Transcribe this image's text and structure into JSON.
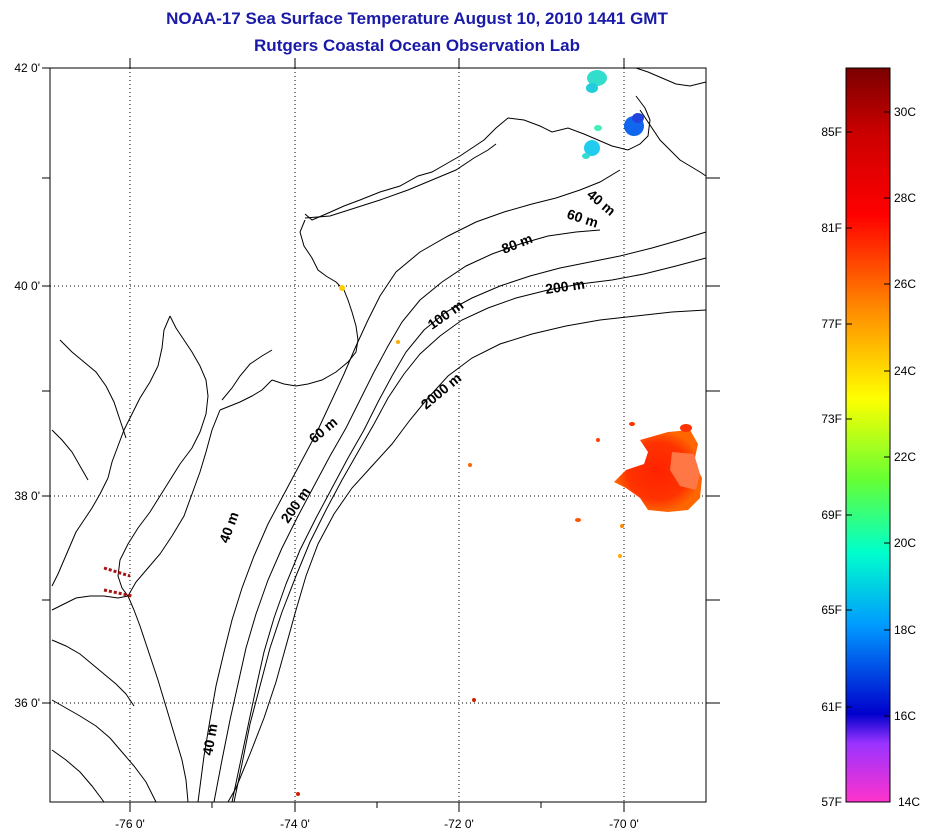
{
  "header": {
    "title": "NOAA-17 Sea Surface Temperature August 10, 2010 1441 GMT",
    "subtitle": "Rutgers Coastal Ocean Observation Lab"
  },
  "map": {
    "lon_range": [
      -77,
      -69
    ],
    "lat_range": [
      35,
      42
    ],
    "lon_ticks": [
      {
        "lon": -76,
        "label": "-76 0'"
      },
      {
        "lon": -74,
        "label": "-74 0'"
      },
      {
        "lon": -72,
        "label": "-72 0'"
      },
      {
        "lon": -70,
        "label": "-70 0'"
      }
    ],
    "lat_ticks": [
      {
        "lat": 42,
        "label": "42 0'"
      },
      {
        "lat": 40,
        "label": "40 0'"
      },
      {
        "lat": 38,
        "label": "38 0'"
      },
      {
        "lat": 36,
        "label": "36 0'"
      }
    ],
    "grid": "dotted",
    "isobath_labels": [
      "40 m",
      "60 m",
      "80 m",
      "200 m",
      "100 m",
      "2000 m",
      "60 m",
      "40 m",
      "200 m",
      "40 m"
    ]
  },
  "colorbar": {
    "fahrenheit": [
      "85F",
      "81F",
      "77F",
      "73F",
      "69F",
      "65F",
      "61F",
      "57F"
    ],
    "celsius": [
      "30C",
      "28C",
      "26C",
      "24C",
      "22C",
      "20C",
      "18C",
      "16C",
      "14C"
    ],
    "colors": [
      "#7a0000",
      "#ff0000",
      "#ff8800",
      "#ffff00",
      "#00ff88",
      "#00ccff",
      "#0000ff",
      "#ff33cc"
    ]
  }
}
